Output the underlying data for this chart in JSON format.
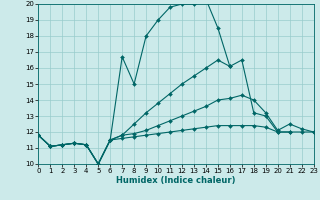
{
  "xlabel": "Humidex (Indice chaleur)",
  "bg_color": "#cceaea",
  "grid_color": "#99cccc",
  "line_color": "#006666",
  "xlim": [
    0,
    23
  ],
  "ylim": [
    10,
    20
  ],
  "yticks": [
    10,
    11,
    12,
    13,
    14,
    15,
    16,
    17,
    18,
    19,
    20
  ],
  "xticks": [
    0,
    1,
    2,
    3,
    4,
    5,
    6,
    7,
    8,
    9,
    10,
    11,
    12,
    13,
    14,
    15,
    16,
    17,
    18,
    19,
    20,
    21,
    22,
    23
  ],
  "series": [
    {
      "x": [
        0,
        1,
        2,
        3,
        4,
        5,
        6,
        7,
        8,
        9,
        10,
        11,
        12,
        13,
        14,
        15,
        16
      ],
      "y": [
        11.8,
        11.1,
        11.2,
        11.3,
        11.2,
        10.0,
        11.5,
        16.7,
        15.0,
        18.0,
        19.0,
        19.8,
        20.0,
        20.0,
        20.3,
        18.5,
        16.1
      ]
    },
    {
      "x": [
        0,
        1,
        2,
        3,
        4,
        5,
        6,
        7,
        8,
        9,
        10,
        11,
        12,
        13,
        14,
        15,
        16,
        17,
        18,
        19,
        20,
        21
      ],
      "y": [
        11.8,
        11.1,
        11.2,
        11.3,
        11.2,
        10.0,
        11.5,
        11.8,
        12.5,
        13.2,
        13.8,
        14.4,
        15.0,
        15.5,
        16.0,
        16.5,
        16.1,
        16.5,
        13.2,
        13.0,
        12.0,
        12.0
      ]
    },
    {
      "x": [
        0,
        1,
        2,
        3,
        4,
        5,
        6,
        7,
        8,
        9,
        10,
        11,
        12,
        13,
        14,
        15,
        16,
        17,
        18,
        19,
        20,
        21,
        22,
        23
      ],
      "y": [
        11.8,
        11.1,
        11.2,
        11.3,
        11.2,
        10.0,
        11.5,
        11.8,
        11.9,
        12.1,
        12.4,
        12.7,
        13.0,
        13.3,
        13.6,
        14.0,
        14.1,
        14.3,
        14.0,
        13.2,
        12.1,
        12.5,
        12.2,
        12.0
      ]
    },
    {
      "x": [
        0,
        1,
        2,
        3,
        4,
        5,
        6,
        7,
        8,
        9,
        10,
        11,
        12,
        13,
        14,
        15,
        16,
        17,
        18,
        19,
        20,
        21,
        22,
        23
      ],
      "y": [
        11.8,
        11.1,
        11.2,
        11.3,
        11.2,
        10.0,
        11.5,
        11.6,
        11.7,
        11.8,
        11.9,
        12.0,
        12.1,
        12.2,
        12.3,
        12.4,
        12.4,
        12.4,
        12.4,
        12.3,
        12.0,
        12.0,
        12.0,
        12.0
      ]
    }
  ]
}
